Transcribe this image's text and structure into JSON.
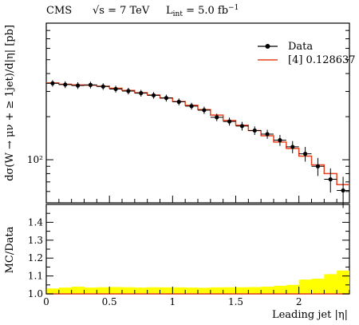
{
  "header": {
    "experiment": "CMS",
    "energy": "√s = 7 TeV",
    "luminosity_label": "L",
    "luminosity_sub": "int",
    "luminosity_value": " = 5.0 fb",
    "luminosity_exp": "−1"
  },
  "colors": {
    "data": "#000000",
    "model": "#e8401c",
    "band": "#ffff00"
  },
  "legend": {
    "data_label": "Data",
    "model_label": "[4] 0.128637"
  },
  "chart_data": [
    {
      "type": "line",
      "title": "",
      "ylabel": "dσ(W → μν + ≥ 1jet)/d|η| [pb]",
      "xlabel": "",
      "yscale": "log",
      "ylim": [
        50,
        900
      ],
      "xlim": [
        0,
        2.4
      ],
      "y_tick_labels": [
        "10²"
      ],
      "legend_position": "top-right",
      "bin_edges": [
        0,
        0.1,
        0.2,
        0.3,
        0.4,
        0.5,
        0.6,
        0.7,
        0.8,
        0.9,
        1.0,
        1.1,
        1.2,
        1.3,
        1.4,
        1.5,
        1.6,
        1.7,
        1.8,
        1.9,
        2.0,
        2.1,
        2.2,
        2.3,
        2.4
      ],
      "series": [
        {
          "name": "Data",
          "x": [
            0.05,
            0.15,
            0.25,
            0.35,
            0.45,
            0.55,
            0.65,
            0.75,
            0.85,
            0.95,
            1.05,
            1.15,
            1.25,
            1.35,
            1.45,
            1.55,
            1.65,
            1.75,
            1.85,
            1.95,
            2.05,
            2.15,
            2.25,
            2.35
          ],
          "y": [
            342,
            335,
            330,
            333,
            325,
            312,
            302,
            292,
            282,
            270,
            254,
            237,
            222,
            198,
            185,
            172,
            160,
            151,
            137,
            123,
            110,
            90,
            73,
            61
          ],
          "yerr": [
            18,
            18,
            18,
            18,
            17,
            17,
            16,
            16,
            15,
            15,
            14,
            13,
            13,
            12,
            12,
            12,
            11,
            11,
            12,
            12,
            13,
            13,
            14,
            15
          ]
        },
        {
          "name": "[4] 0.128637",
          "values": [
            344,
            337,
            333,
            332,
            326,
            316,
            305,
            294,
            283,
            270,
            255,
            240,
            224,
            205,
            188,
            174,
            160,
            147,
            133,
            120,
            106,
            92,
            80,
            67
          ]
        }
      ]
    },
    {
      "type": "area",
      "title": "",
      "ylabel": "MC/Data",
      "xlabel": "Leading jet |η|",
      "ylim": [
        1.0,
        1.5
      ],
      "xlim": [
        0,
        2.4
      ],
      "y_ticks": [
        1.0,
        1.1,
        1.2,
        1.3,
        1.4
      ],
      "y_tick_labels": [
        "1.0",
        "1.1",
        "1.2",
        "1.3",
        "1.4"
      ],
      "x_ticks": [
        0,
        0.5,
        1,
        1.5,
        2
      ],
      "x_tick_labels": [
        "0",
        "0.5",
        "1",
        "1.5",
        "2"
      ],
      "band_upper": [
        1.03,
        1.035,
        1.04,
        1.035,
        1.037,
        1.038,
        1.037,
        1.035,
        1.037,
        1.036,
        1.036,
        1.035,
        1.034,
        1.036,
        1.037,
        1.037,
        1.038,
        1.04,
        1.045,
        1.05,
        1.08,
        1.085,
        1.11,
        1.13
      ],
      "band_lower": [
        1.0,
        1.0,
        1.0,
        1.0,
        1.0,
        1.0,
        1.0,
        1.0,
        1.0,
        1.0,
        1.0,
        1.0,
        1.0,
        1.0,
        1.0,
        1.0,
        1.0,
        1.0,
        1.0,
        1.0,
        1.0,
        1.0,
        1.0,
        1.0
      ],
      "reference_line": 1.0
    }
  ]
}
